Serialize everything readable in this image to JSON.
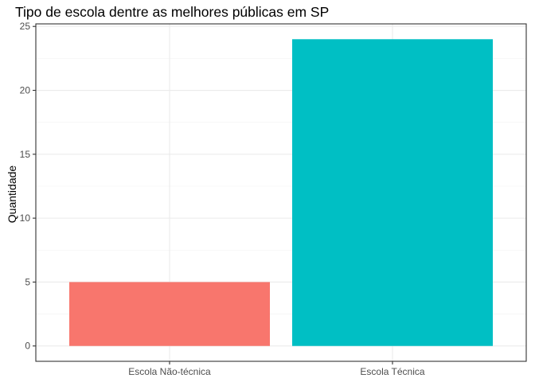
{
  "chart_data": {
    "type": "bar",
    "title": "Tipo de escola dentre as melhores públicas em SP",
    "xlabel": "",
    "ylabel": "Quantidade",
    "categories": [
      "Escola Não-técnica",
      "Escola Técnica"
    ],
    "values": [
      5,
      24
    ],
    "colors": [
      "#F8766D",
      "#00BFC4"
    ],
    "ylim": [
      -1.2,
      25.2
    ],
    "yticks": [
      0,
      5,
      10,
      15,
      20,
      25
    ],
    "grid": true,
    "legend": "none"
  }
}
